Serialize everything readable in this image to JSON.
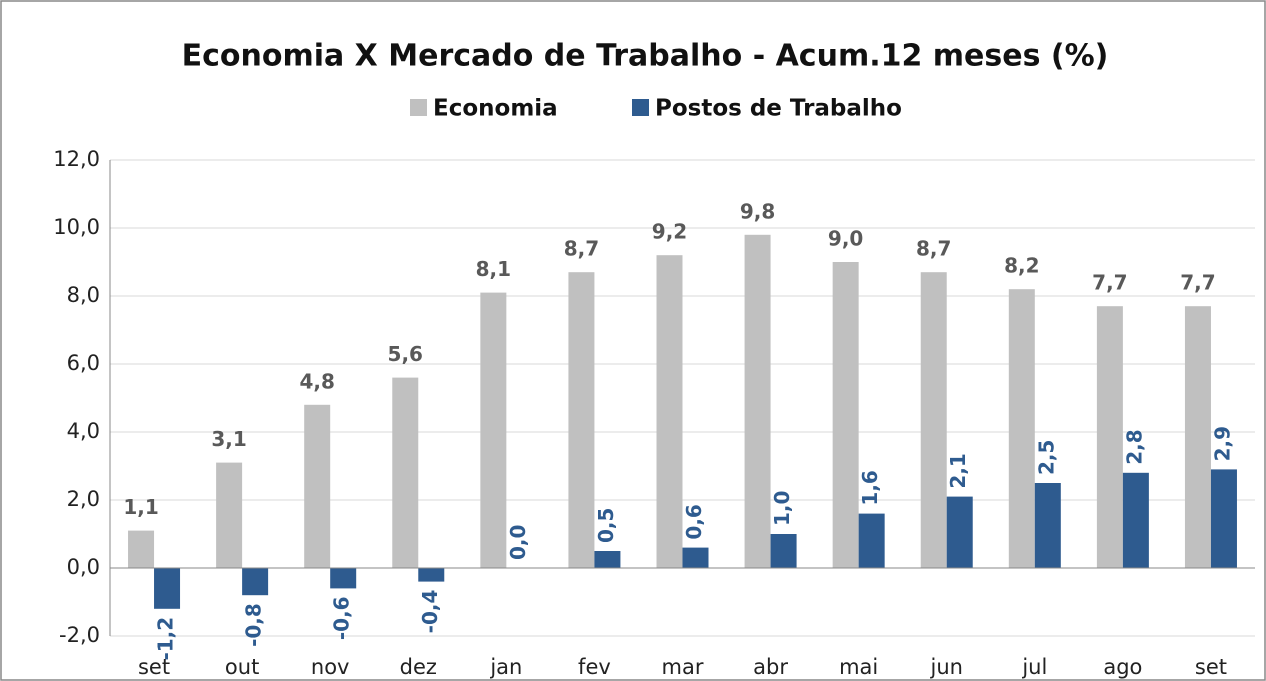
{
  "chart_data": {
    "type": "bar",
    "title": "Economia X Mercado de Trabalho - Acum.12 meses (%)",
    "categories": [
      "set",
      "out",
      "nov",
      "dez",
      "jan",
      "fev",
      "mar",
      "abr",
      "mai",
      "jun",
      "jul",
      "ago",
      "set"
    ],
    "series": [
      {
        "name": "Economia",
        "color": "#c0c0c0",
        "label_color": "#595959",
        "values": [
          1.1,
          3.1,
          4.8,
          5.6,
          8.1,
          8.7,
          9.2,
          9.8,
          9.0,
          8.7,
          8.2,
          7.7,
          7.7
        ],
        "value_labels": [
          "1,1",
          "3,1",
          "4,8",
          "5,6",
          "8,1",
          "8,7",
          "9,2",
          "9,8",
          "9,0",
          "8,7",
          "8,2",
          "7,7",
          "7,7"
        ]
      },
      {
        "name": "Postos de Trabalho",
        "color": "#2e5b8f",
        "label_color": "#2e5b8f",
        "values": [
          -1.2,
          -0.8,
          -0.6,
          -0.4,
          0.0,
          0.5,
          0.6,
          1.0,
          1.6,
          2.1,
          2.5,
          2.8,
          2.9
        ],
        "value_labels": [
          "-1,2",
          "-0,8",
          "-0,6",
          "-0,4",
          "0,0",
          "0,5",
          "0,6",
          "1,0",
          "1,6",
          "2,1",
          "2,5",
          "2,8",
          "2,9"
        ]
      }
    ],
    "ylim": [
      -2,
      12
    ],
    "yticks": [
      {
        "value": -2,
        "label": "-2,0"
      },
      {
        "value": 0,
        "label": "0,0"
      },
      {
        "value": 2,
        "label": "2,0"
      },
      {
        "value": 4,
        "label": "4,0"
      },
      {
        "value": 6,
        "label": "6,0"
      },
      {
        "value": 8,
        "label": "8,0"
      },
      {
        "value": 10,
        "label": "10,0"
      },
      {
        "value": 12,
        "label": "12,0"
      }
    ],
    "grid": true
  }
}
